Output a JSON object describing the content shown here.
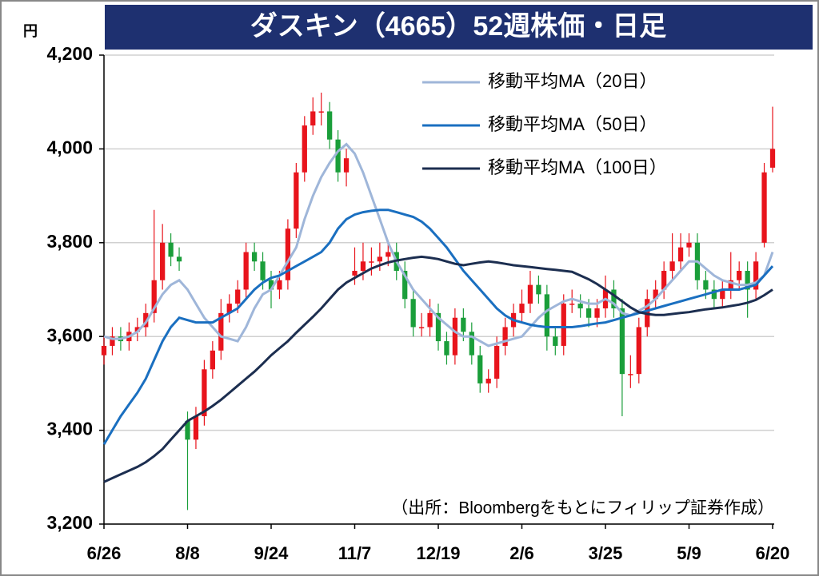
{
  "chart_data": {
    "type": "candlestick",
    "title": "ダスキン（4665）52週株価・日足",
    "unit_label": "円",
    "source": "（出所：Bloombergをもとにフィリップ証券作成）",
    "categories": [
      "6/26",
      null,
      null,
      null,
      null,
      null,
      null,
      null,
      null,
      null,
      "8/8",
      null,
      null,
      null,
      null,
      null,
      null,
      null,
      null,
      null,
      "9/24",
      null,
      null,
      null,
      null,
      null,
      null,
      null,
      null,
      null,
      "11/7",
      null,
      null,
      null,
      null,
      null,
      null,
      null,
      null,
      null,
      "12/19",
      null,
      null,
      null,
      null,
      null,
      null,
      null,
      null,
      null,
      "2/6",
      null,
      null,
      null,
      null,
      null,
      null,
      null,
      null,
      null,
      "3/25",
      null,
      null,
      null,
      null,
      null,
      null,
      null,
      null,
      null,
      "5/9",
      null,
      null,
      null,
      null,
      null,
      null,
      null,
      null,
      null,
      "6/20"
    ],
    "open": [
      3560,
      3580,
      3600,
      3590,
      3610,
      3620,
      3650,
      3720,
      3800,
      3770,
      3420,
      3380,
      3430,
      3530,
      3570,
      3650,
      3670,
      3700,
      3780,
      3760,
      3720,
      3700,
      3720,
      3830,
      3950,
      4050,
      4080,
      4080,
      4020,
      3950,
      3730,
      3740,
      3760,
      3760,
      3770,
      3780,
      3740,
      3680,
      3620,
      3620,
      3650,
      3590,
      3560,
      3640,
      3610,
      3560,
      3500,
      3510,
      3580,
      3620,
      3650,
      3670,
      3710,
      3690,
      3600,
      3580,
      3670,
      3670,
      3660,
      3640,
      3660,
      3700,
      3660,
      3520,
      3520,
      3620,
      3680,
      3700,
      3740,
      3760,
      3790,
      3800,
      3720,
      3700,
      3680,
      3700,
      3720,
      3740,
      3700,
      3800,
      3960
    ],
    "high": [
      3600,
      3620,
      3620,
      3630,
      3640,
      3670,
      3870,
      3840,
      3820,
      3790,
      3440,
      3450,
      3550,
      3590,
      3680,
      3690,
      3720,
      3800,
      3800,
      3780,
      3740,
      3740,
      3850,
      3970,
      4070,
      4110,
      4120,
      4100,
      4040,
      4000,
      3790,
      3800,
      3790,
      3800,
      3800,
      3800,
      3760,
      3700,
      3650,
      3680,
      3670,
      3610,
      3660,
      3660,
      3630,
      3580,
      3530,
      3600,
      3640,
      3670,
      3700,
      3740,
      3730,
      3710,
      3620,
      3690,
      3700,
      3690,
      3680,
      3680,
      3730,
      3720,
      3680,
      3560,
      3640,
      3700,
      3720,
      3760,
      3820,
      3820,
      3820,
      3820,
      3740,
      3720,
      3720,
      3780,
      3760,
      3760,
      3780,
      3970,
      4090
    ],
    "low": [
      3540,
      3560,
      3570,
      3570,
      3590,
      3600,
      3630,
      3700,
      3750,
      3740,
      3230,
      3360,
      3410,
      3510,
      3550,
      3630,
      3650,
      3680,
      3740,
      3700,
      3660,
      3680,
      3700,
      3810,
      3930,
      4030,
      4050,
      4000,
      3930,
      3920,
      3710,
      3720,
      3730,
      3740,
      3750,
      3720,
      3660,
      3600,
      3600,
      3600,
      3570,
      3540,
      3540,
      3590,
      3540,
      3480,
      3480,
      3490,
      3560,
      3600,
      3630,
      3650,
      3670,
      3570,
      3560,
      3560,
      3650,
      3640,
      3620,
      3620,
      3640,
      3640,
      3430,
      3490,
      3500,
      3600,
      3660,
      3680,
      3720,
      3740,
      3770,
      3700,
      3680,
      3660,
      3660,
      3680,
      3700,
      3640,
      3680,
      3790,
      3950
    ],
    "close": [
      3580,
      3600,
      3590,
      3610,
      3620,
      3650,
      3720,
      3800,
      3770,
      3760,
      3380,
      3430,
      3530,
      3570,
      3650,
      3670,
      3700,
      3780,
      3760,
      3720,
      3700,
      3720,
      3830,
      3950,
      4050,
      4080,
      4080,
      4020,
      3950,
      3980,
      3740,
      3760,
      3760,
      3770,
      3780,
      3740,
      3680,
      3620,
      3620,
      3650,
      3590,
      3560,
      3640,
      3610,
      3560,
      3500,
      3510,
      3580,
      3620,
      3650,
      3670,
      3710,
      3690,
      3600,
      3580,
      3670,
      3670,
      3660,
      3640,
      3660,
      3700,
      3660,
      3520,
      3520,
      3620,
      3680,
      3700,
      3740,
      3760,
      3790,
      3800,
      3720,
      3700,
      3680,
      3700,
      3720,
      3740,
      3700,
      3760,
      3950,
      4000
    ],
    "up_color": "#e8141c",
    "down_color": "#1a9e3a",
    "series": [
      {
        "name": "移動平均MA（20日）",
        "color": "#9fb6d9",
        "values": [
          3600,
          3595,
          3595,
          3600,
          3610,
          3630,
          3660,
          3690,
          3710,
          3720,
          3700,
          3670,
          3640,
          3620,
          3600,
          3595,
          3590,
          3620,
          3660,
          3690,
          3700,
          3730,
          3760,
          3790,
          3850,
          3900,
          3940,
          3970,
          3995,
          4010,
          3990,
          3950,
          3900,
          3850,
          3800,
          3760,
          3730,
          3700,
          3680,
          3660,
          3640,
          3625,
          3610,
          3600,
          3600,
          3590,
          3580,
          3585,
          3590,
          3595,
          3600,
          3620,
          3640,
          3655,
          3665,
          3675,
          3680,
          3675,
          3670,
          3670,
          3680,
          3670,
          3650,
          3645,
          3655,
          3665,
          3680,
          3700,
          3720,
          3740,
          3760,
          3760,
          3745,
          3730,
          3720,
          3715,
          3710,
          3710,
          3715,
          3730,
          3780
        ]
      },
      {
        "name": "移動平均MA（50日）",
        "color": "#1a6fc0",
        "values": [
          3370,
          3400,
          3430,
          3455,
          3480,
          3510,
          3550,
          3590,
          3620,
          3640,
          3635,
          3630,
          3630,
          3630,
          3640,
          3650,
          3660,
          3680,
          3700,
          3715,
          3725,
          3730,
          3740,
          3750,
          3760,
          3770,
          3780,
          3800,
          3830,
          3850,
          3860,
          3865,
          3868,
          3870,
          3870,
          3865,
          3860,
          3855,
          3845,
          3830,
          3810,
          3790,
          3765,
          3740,
          3720,
          3700,
          3680,
          3660,
          3645,
          3635,
          3630,
          3625,
          3622,
          3620,
          3620,
          3620,
          3620,
          3622,
          3625,
          3628,
          3630,
          3635,
          3640,
          3645,
          3650,
          3655,
          3660,
          3665,
          3670,
          3675,
          3680,
          3685,
          3690,
          3695,
          3700,
          3700,
          3700,
          3705,
          3710,
          3730,
          3750
        ]
      },
      {
        "name": "移動平均MA（100日）",
        "color": "#1c2e50",
        "values": [
          3290,
          3298,
          3306,
          3314,
          3322,
          3332,
          3345,
          3360,
          3380,
          3400,
          3420,
          3430,
          3440,
          3452,
          3465,
          3480,
          3495,
          3510,
          3525,
          3542,
          3560,
          3575,
          3590,
          3608,
          3625,
          3642,
          3660,
          3680,
          3700,
          3715,
          3725,
          3735,
          3745,
          3752,
          3758,
          3762,
          3765,
          3768,
          3770,
          3768,
          3765,
          3760,
          3755,
          3752,
          3755,
          3758,
          3760,
          3758,
          3755,
          3752,
          3750,
          3748,
          3746,
          3744,
          3742,
          3740,
          3738,
          3730,
          3722,
          3712,
          3700,
          3688,
          3675,
          3662,
          3652,
          3648,
          3646,
          3646,
          3648,
          3650,
          3652,
          3655,
          3658,
          3660,
          3662,
          3665,
          3668,
          3672,
          3678,
          3688,
          3700
        ]
      }
    ],
    "ylim": [
      3200,
      4200
    ],
    "yticks": [
      {
        "value": 3200,
        "label": "3,200"
      },
      {
        "value": 3400,
        "label": "3,400"
      },
      {
        "value": 3600,
        "label": "3,600"
      },
      {
        "value": 3800,
        "label": "3,800"
      },
      {
        "value": 4000,
        "label": "4,000"
      },
      {
        "value": 4200,
        "label": "4,200"
      }
    ],
    "grid": true
  }
}
